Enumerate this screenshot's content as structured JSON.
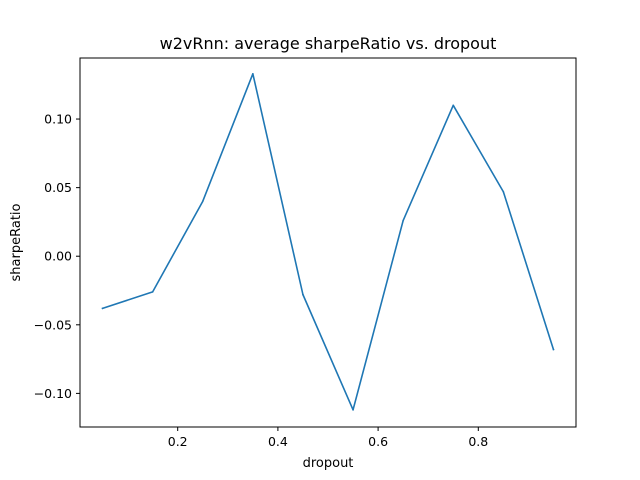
{
  "chart_data": {
    "type": "line",
    "title": "w2vRnn: average sharpeRatio vs. dropout",
    "xlabel": "dropout",
    "ylabel": "sharpeRatio",
    "xlim": [
      0.005,
      0.995
    ],
    "ylim": [
      -0.1245,
      0.1445
    ],
    "xticks": [
      0.2,
      0.4,
      0.6,
      0.8
    ],
    "xtick_labels": [
      "0.2",
      "0.4",
      "0.6",
      "0.8"
    ],
    "yticks": [
      -0.1,
      -0.05,
      0.0,
      0.05,
      0.1
    ],
    "ytick_labels": [
      "−0.10",
      "−0.05",
      "0.00",
      "0.05",
      "0.10"
    ],
    "grid": false,
    "series": [
      {
        "color": "#1f77b4",
        "x": [
          0.05,
          0.15,
          0.25,
          0.35,
          0.45,
          0.55,
          0.65,
          0.75,
          0.85,
          0.95
        ],
        "y": [
          -0.038,
          -0.026,
          0.04,
          0.133,
          -0.028,
          -0.112,
          0.026,
          0.11,
          0.047,
          -0.068
        ]
      }
    ]
  }
}
